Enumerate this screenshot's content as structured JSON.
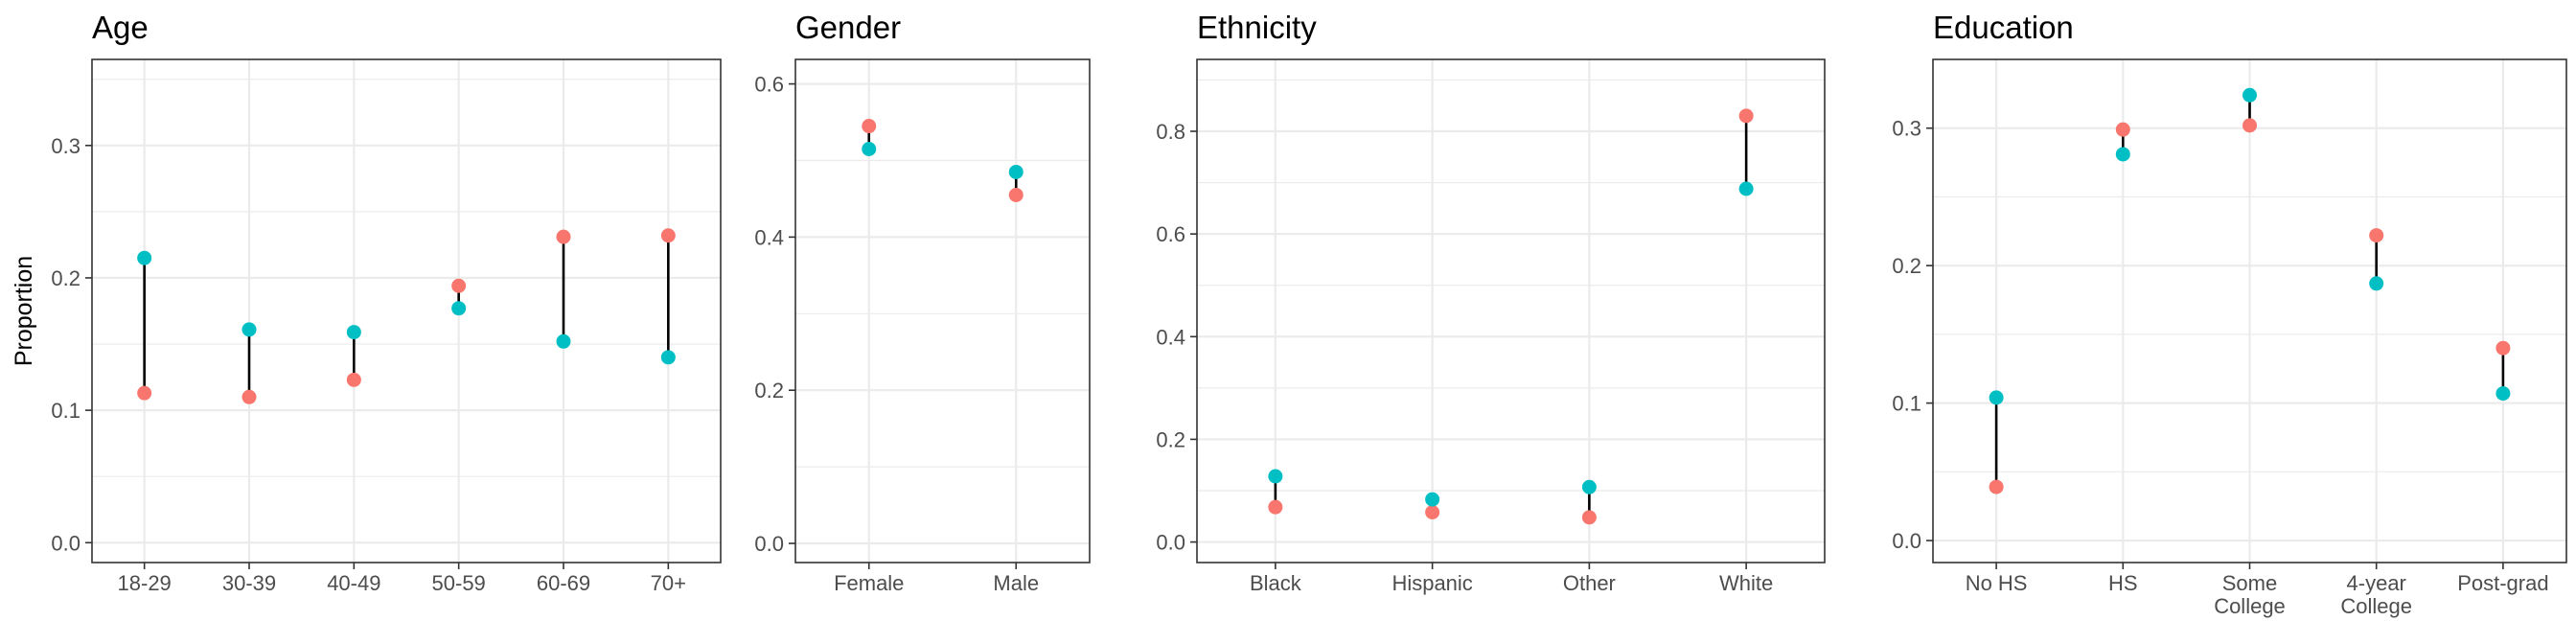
{
  "colors": {
    "red": "#F8766D",
    "teal": "#00BFC4",
    "grid": "#EBEBEB",
    "border": "#333333",
    "segment": "#000000"
  },
  "chart_data": [
    {
      "type": "dot-range",
      "title": "Age",
      "ylabel": "Proportion",
      "categories": [
        "18-29",
        "30-39",
        "40-49",
        "50-59",
        "60-69",
        "70+"
      ],
      "series": [
        {
          "values": [
            0.113,
            0.11,
            0.123,
            0.194,
            0.231,
            0.232
          ],
          "color": "#F8766D"
        },
        {
          "values": [
            0.215,
            0.161,
            0.159,
            0.177,
            0.152,
            0.14
          ],
          "color": "#00BFC4"
        }
      ],
      "ylim": [
        -0.015,
        0.365
      ],
      "yticks": [
        0.0,
        0.1,
        0.2,
        0.3
      ],
      "ytick_labels": [
        "0.0",
        "0.1",
        "0.2",
        "0.3"
      ],
      "grid": true
    },
    {
      "type": "dot-range",
      "title": "Gender",
      "ylabel": "",
      "categories": [
        "Female",
        "Male"
      ],
      "series": [
        {
          "values": [
            0.545,
            0.455
          ],
          "color": "#F8766D"
        },
        {
          "values": [
            0.515,
            0.485
          ],
          "color": "#00BFC4"
        }
      ],
      "ylim": [
        -0.025,
        0.632
      ],
      "yticks": [
        0.0,
        0.2,
        0.4,
        0.6
      ],
      "ytick_labels": [
        "0.0",
        "0.2",
        "0.4",
        "0.6"
      ],
      "grid": true
    },
    {
      "type": "dot-range",
      "title": "Ethnicity",
      "ylabel": "",
      "categories": [
        "Black",
        "Hispanic",
        "Other",
        "White"
      ],
      "series": [
        {
          "values": [
            0.068,
            0.058,
            0.048,
            0.83
          ],
          "color": "#F8766D"
        },
        {
          "values": [
            0.128,
            0.083,
            0.107,
            0.688
          ],
          "color": "#00BFC4"
        }
      ],
      "ylim": [
        -0.04,
        0.94
      ],
      "yticks": [
        0.0,
        0.2,
        0.4,
        0.6,
        0.8
      ],
      "ytick_labels": [
        "0.0",
        "0.2",
        "0.4",
        "0.6",
        "0.8"
      ],
      "grid": true
    },
    {
      "type": "dot-range",
      "title": "Education",
      "ylabel": "",
      "categories": [
        "No HS",
        "HS",
        "Some\nCollege",
        "4-year\nCollege",
        "Post-grad"
      ],
      "series": [
        {
          "values": [
            0.039,
            0.299,
            0.302,
            0.222,
            0.14
          ],
          "color": "#F8766D"
        },
        {
          "values": [
            0.104,
            0.281,
            0.324,
            0.187,
            0.107
          ],
          "color": "#00BFC4"
        }
      ],
      "ylim": [
        -0.016,
        0.35
      ],
      "yticks": [
        0.0,
        0.1,
        0.2,
        0.3
      ],
      "ytick_labels": [
        "0.0",
        "0.1",
        "0.2",
        "0.3"
      ],
      "grid": true
    }
  ]
}
